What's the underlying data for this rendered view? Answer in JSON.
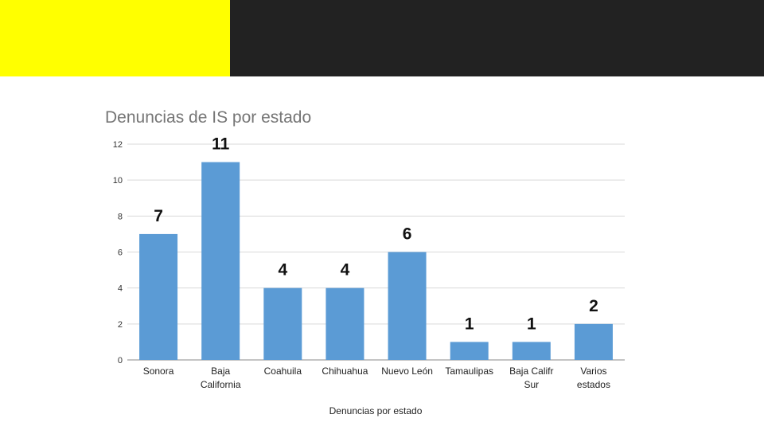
{
  "slide": {
    "band_left_color": "#ffff00",
    "band_right_color": "#222222"
  },
  "chart_data": {
    "type": "bar",
    "title": "Denuncias de IS por estado",
    "xlabel": "Denuncias por estado",
    "ylabel": "",
    "ylim": [
      0,
      12
    ],
    "yticks": [
      0,
      2,
      4,
      6,
      8,
      10,
      12
    ],
    "grid": true,
    "legend": "none",
    "bar_color": "#5b9bd5",
    "categories": [
      [
        "Sonora"
      ],
      [
        "Baja",
        "California"
      ],
      [
        "Coahuila"
      ],
      [
        "Chihuahua"
      ],
      [
        "Nuevo León"
      ],
      [
        "Tamaulipas"
      ],
      [
        "Baja Califr",
        "Sur"
      ],
      [
        "Varios",
        "estados"
      ]
    ],
    "values": [
      7,
      11,
      4,
      4,
      6,
      1,
      1,
      2
    ]
  }
}
